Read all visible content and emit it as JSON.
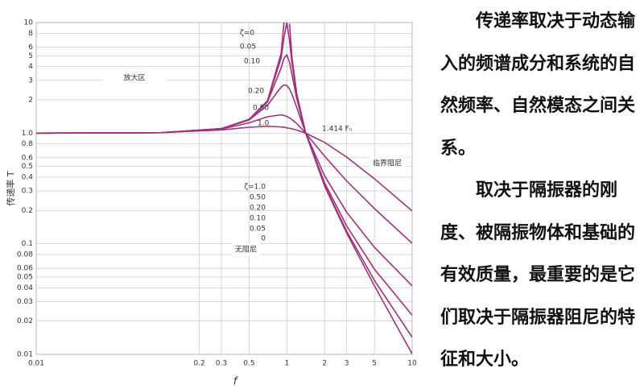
{
  "chart_data": {
    "type": "line",
    "x_label": "f",
    "y_label": "传递率 T",
    "log_x": true,
    "log_y": true,
    "grid": true,
    "x": [
      0.01,
      0.1,
      0.3,
      0.5,
      0.7,
      0.9,
      0.95,
      1,
      1.05,
      1.1,
      1.2,
      1.414,
      2,
      3,
      5,
      10
    ],
    "series": [
      {
        "name": "ζ=0",
        "color": "#a0307a",
        "values": [
          1,
          1.0101,
          1.099,
          1.333,
          1.961,
          5.263,
          10.256,
          null,
          9.756,
          4.762,
          2.273,
          1,
          0.333,
          0.125,
          0.0417,
          0.0101
        ]
      },
      {
        "name": "0.05",
        "color": "#a0307a",
        "values": [
          1,
          1.0101,
          1.0988,
          1.332,
          1.947,
          4.776,
          7.379,
          10.05,
          6.853,
          4.244,
          2.208,
          1,
          0.339,
          0.13,
          0.0466,
          0.0143
        ]
      },
      {
        "name": "0.10",
        "color": "#a0307a",
        "values": [
          1,
          1.0101,
          1.0985,
          1.328,
          1.909,
          3.882,
          4.767,
          5.099,
          4.373,
          3.367,
          2.052,
          1,
          0.356,
          0.145,
          0.0589,
          0.0226
        ]
      },
      {
        "name": "0.20",
        "color": "#a0307a",
        "values": [
          1,
          1.0101,
          1.0973,
          1.314,
          1.785,
          2.611,
          2.727,
          2.693,
          2.509,
          2.241,
          1.704,
          1,
          0.412,
          0.193,
          0.0928,
          0.0416
        ]
      },
      {
        "name": "0.50",
        "color": "#a0307a",
        "values": [
          1,
          1.01,
          1.0896,
          1.24,
          1.409,
          1.463,
          1.444,
          1.414,
          1.374,
          1.327,
          1.222,
          1,
          0.62,
          0.37,
          0.208,
          0.101
        ]
      },
      {
        "name": "1.0",
        "color": "#a0307a",
        "values": [
          1,
          1.0097,
          1.0699,
          1.131,
          1.155,
          1.138,
          1.129,
          1.118,
          1.106,
          1.093,
          1.066,
          1,
          0.825,
          0.608,
          0.387,
          0.198
        ]
      }
    ],
    "lower_labels": [
      "ζ=1.0",
      "0.50",
      "0.20",
      "0.10",
      "0.05",
      "0"
    ],
    "annotations": [
      "放大区",
      "1.414 Fₙ",
      "临界阻尼",
      "无阻尼"
    ],
    "xlim": [
      0.01,
      10
    ],
    "xticks": [
      0.01,
      0.2,
      0.3,
      0.5,
      1,
      2,
      3,
      5,
      10
    ],
    "ylim": [
      0.01,
      10
    ],
    "yticks": [
      10,
      8,
      6,
      5,
      4,
      3,
      2,
      {
        "value": 1,
        "label": "1.0"
      },
      0.8,
      0.6,
      0.5,
      0.4,
      0.3,
      0.2,
      0.1,
      0.08,
      0.06,
      0.05,
      0.04,
      0.03,
      0.02,
      0.01
    ]
  },
  "paragraphs": [
    "传递率取决于动态输入的频谱成分和系统的自然频率、自然模态之间关系。",
    "取决于隔振器的刚度、被隔振物体和基础的有效质量，最重要的是它们取决于隔振器阻尼的特征和大小。"
  ]
}
